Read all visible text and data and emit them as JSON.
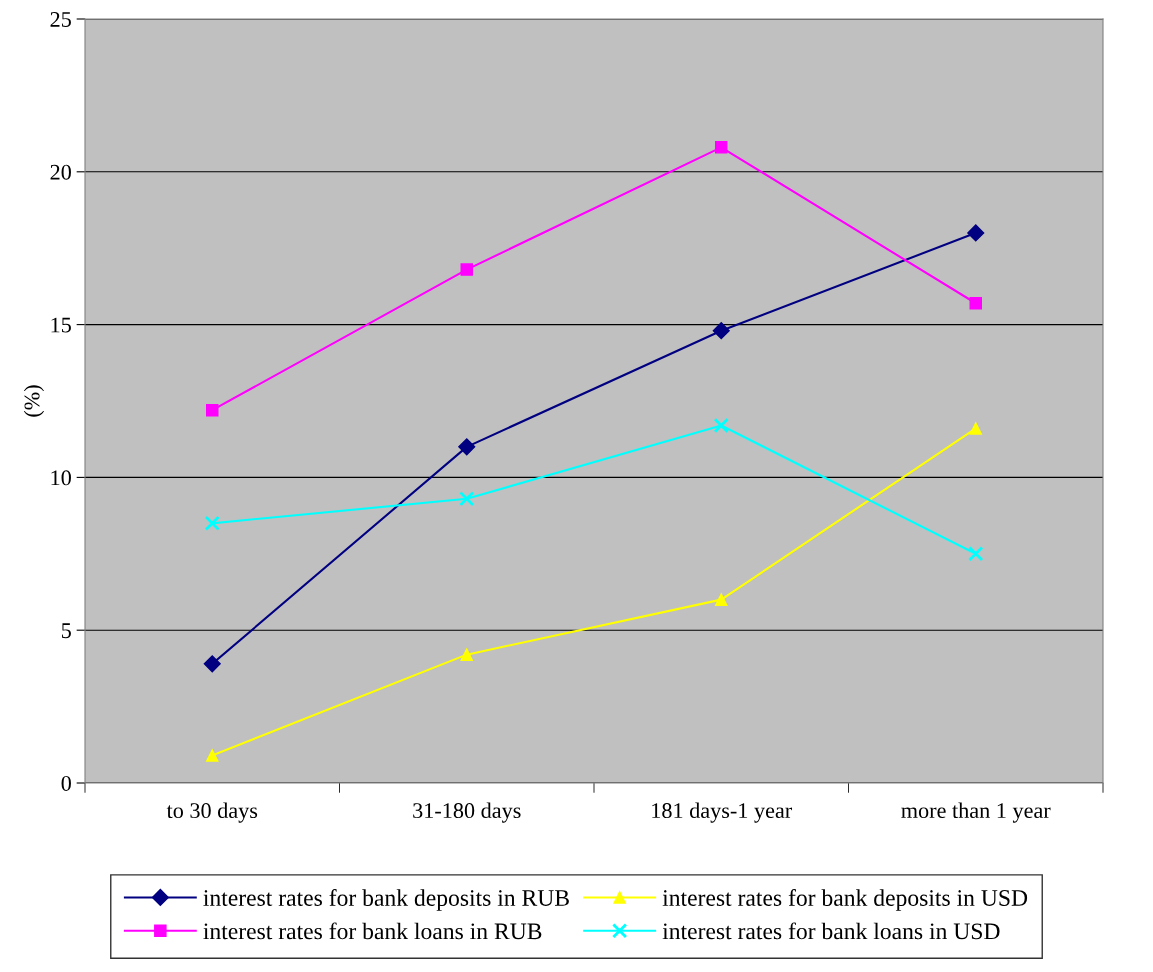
{
  "chart_data": {
    "type": "line",
    "ylabel": "(%)",
    "categories": [
      "to 30 days",
      "31-180 days",
      "181 days-1 year",
      "more than 1 year"
    ],
    "series": [
      {
        "name": "interest rates for bank deposits in RUB",
        "color": "#000080",
        "marker": "diamond",
        "values": [
          3.9,
          11.0,
          14.8,
          18.0
        ]
      },
      {
        "name": "interest rates for bank loans in RUB",
        "color": "#ff00ff",
        "marker": "square",
        "values": [
          12.2,
          16.8,
          20.8,
          15.7
        ]
      },
      {
        "name": "interest rates for bank deposits in USD",
        "color": "#ffff00",
        "marker": "triangle",
        "values": [
          0.9,
          4.2,
          6.0,
          11.6
        ]
      },
      {
        "name": "interest rates for bank loans in USD",
        "color": "#00ffff",
        "marker": "cross",
        "values": [
          8.5,
          9.3,
          11.7,
          7.5
        ]
      }
    ],
    "ylim": [
      0,
      25
    ],
    "yticks": [
      0,
      5,
      10,
      15,
      20,
      25
    ],
    "grid": "y",
    "legend": "bottom",
    "line_style": "solid"
  }
}
